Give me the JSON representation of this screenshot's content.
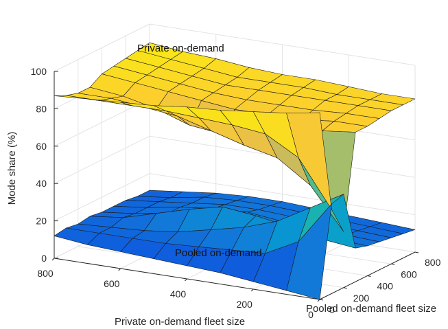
{
  "chart_data": {
    "type": "surface3d",
    "xlabel": "Private on-demand fleet size",
    "ylabel": "Pooled on-demand fleet size",
    "zlabel": "Mode share (%)",
    "x_ticks": [
      800,
      600,
      400,
      200,
      0
    ],
    "y_ticks": [
      0,
      200,
      400,
      600,
      800
    ],
    "z_ticks": [
      0,
      20,
      40,
      60,
      80,
      100
    ],
    "xlim": [
      0,
      800
    ],
    "ylim": [
      0,
      800
    ],
    "zlim": [
      0,
      100
    ],
    "grid": true,
    "colormap": "parula",
    "x": [
      0,
      100,
      200,
      300,
      400,
      500,
      600,
      700,
      800
    ],
    "y": [
      0,
      100,
      200,
      300,
      400,
      500,
      600,
      700,
      800
    ],
    "series": [
      {
        "label": "Private on-demand",
        "z": [
          [
            100,
            97,
            95,
            93,
            92,
            90,
            89,
            88,
            87
          ],
          [
            45,
            70,
            80,
            82,
            83,
            84,
            84,
            84,
            84
          ],
          [
            30,
            52,
            64,
            68,
            73,
            78,
            80,
            82,
            82
          ],
          [
            80,
            78,
            74,
            70,
            68,
            70,
            76,
            80,
            82
          ],
          [
            80,
            80,
            78,
            78,
            78,
            80,
            82,
            84,
            86
          ],
          [
            81,
            81,
            80,
            80,
            80,
            81,
            83,
            85,
            87
          ],
          [
            82,
            82,
            82,
            82,
            82,
            82,
            84,
            86,
            88
          ],
          [
            82,
            82,
            82,
            83,
            83,
            83,
            85,
            87,
            89
          ],
          [
            82,
            82,
            83,
            84,
            84,
            85,
            87,
            88,
            90
          ]
        ]
      },
      {
        "label": "Pooled on-demand",
        "z": [
          [
            0,
            2,
            4,
            6,
            7,
            8,
            9,
            10,
            12
          ],
          [
            48,
            25,
            16,
            15,
            14,
            13,
            13,
            13,
            13
          ],
          [
            50,
            40,
            30,
            24,
            20,
            16,
            14,
            13,
            12
          ],
          [
            18,
            20,
            24,
            27,
            29,
            25,
            20,
            15,
            13
          ],
          [
            16,
            17,
            18,
            20,
            22,
            20,
            17,
            14,
            12
          ],
          [
            15,
            16,
            17,
            18,
            20,
            19,
            17,
            14,
            12
          ],
          [
            14,
            15,
            16,
            17,
            18,
            18,
            16,
            14,
            12
          ],
          [
            13,
            14,
            15,
            16,
            17,
            17,
            16,
            13,
            11
          ],
          [
            12,
            13,
            14,
            15,
            16,
            16,
            15,
            13,
            11
          ]
        ]
      }
    ]
  }
}
